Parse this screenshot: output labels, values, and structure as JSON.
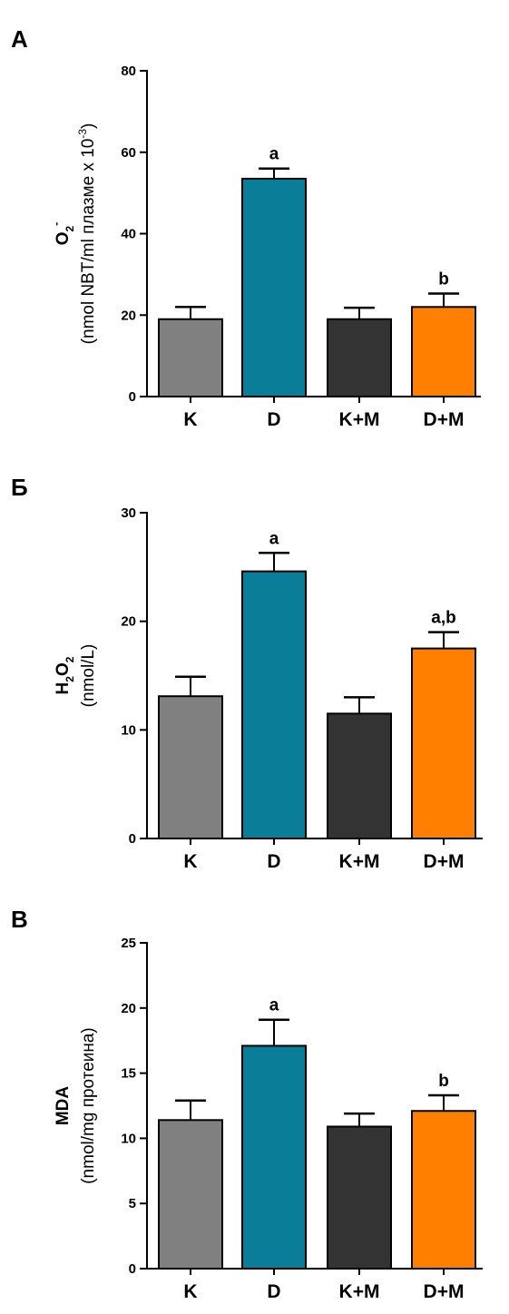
{
  "colors": {
    "K": "#808080",
    "D": "#0a7d99",
    "K+M": "#333333",
    "D+M": "#ff8000",
    "axis": "#000000"
  },
  "chart_data": [
    {
      "type": "bar",
      "panel_label": "А",
      "ylabel_main": "O",
      "ylabel_sub": "2",
      "ylabel_sup": "-",
      "ylabel_units_prefix": "(nmol NBT/ml плазме x 10",
      "ylabel_units_sup": "-3",
      "ylabel_units_suffix": ")",
      "categories": [
        "K",
        "D",
        "K+M",
        "D+M"
      ],
      "values": [
        19,
        53.5,
        19,
        22
      ],
      "errors": [
        3,
        2.5,
        2.8,
        3.3
      ],
      "annotations": [
        "",
        "a",
        "",
        "b"
      ],
      "ylim": [
        0,
        80
      ],
      "yticks": [
        0,
        20,
        40,
        60,
        80
      ],
      "grid": false
    },
    {
      "type": "bar",
      "panel_label": "Б",
      "ylabel_main": "H",
      "ylabel_sub": "2",
      "ylabel_main2": "O",
      "ylabel_sub2": "2",
      "ylabel_units": "(nmol/L)",
      "categories": [
        "K",
        "D",
        "K+M",
        "D+M"
      ],
      "values": [
        13.1,
        24.6,
        11.5,
        17.5
      ],
      "errors": [
        1.8,
        1.7,
        1.5,
        1.5
      ],
      "annotations": [
        "",
        "a",
        "",
        "a,b"
      ],
      "ylim": [
        0,
        30
      ],
      "yticks": [
        0,
        10,
        20,
        30
      ],
      "grid": false
    },
    {
      "type": "bar",
      "panel_label": "В",
      "ylabel_main": "MDA",
      "ylabel_units": "(nmol/mg протеина)",
      "categories": [
        "K",
        "D",
        "K+M",
        "D+M"
      ],
      "values": [
        11.4,
        17.1,
        10.9,
        12.1
      ],
      "errors": [
        1.5,
        2.0,
        1.0,
        1.2
      ],
      "annotations": [
        "",
        "a",
        "",
        "b"
      ],
      "ylim": [
        0,
        25
      ],
      "yticks": [
        0,
        5,
        10,
        15,
        20,
        25
      ],
      "grid": false
    }
  ]
}
